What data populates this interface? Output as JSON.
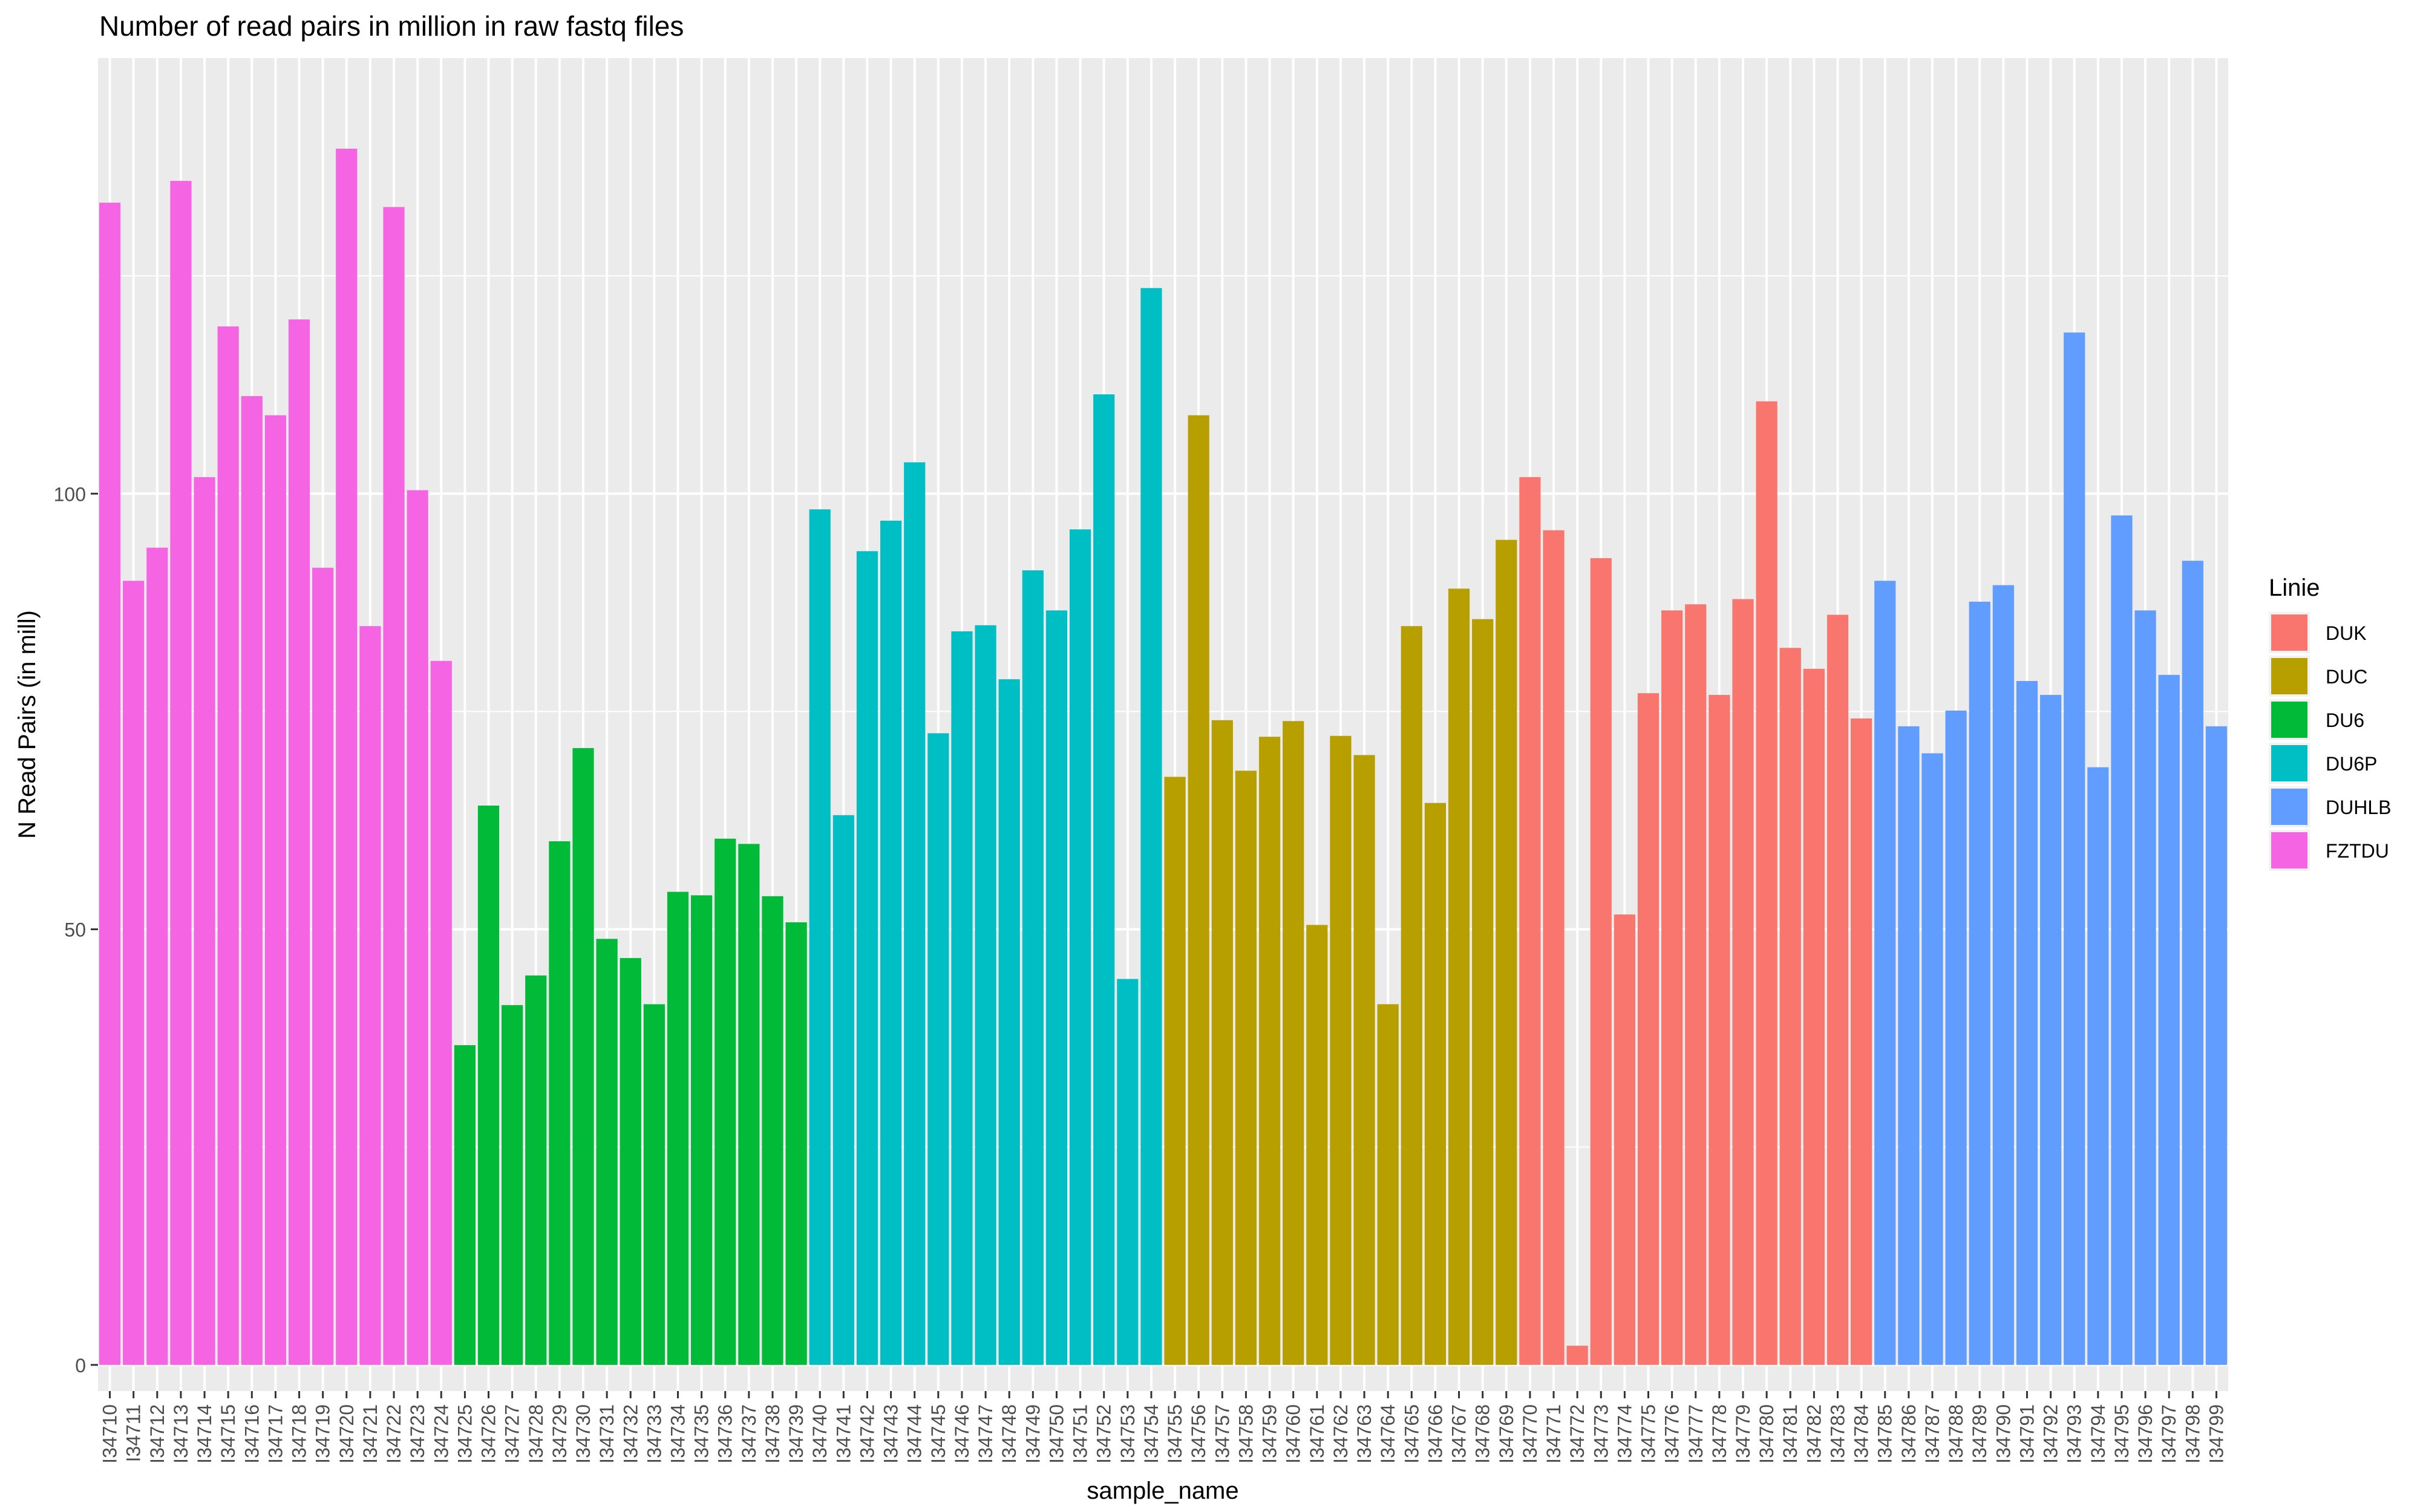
{
  "chart_data": {
    "type": "bar",
    "title": "Number of read pairs in million in raw fastq files",
    "xlabel": "sample_name",
    "ylabel": "N Read Pairs (in mill)",
    "yticks": [
      "0",
      "50",
      "100"
    ],
    "ylim": [
      -3,
      150
    ],
    "grid": true,
    "legend": {
      "title": "Linie",
      "position": "right",
      "entries": [
        {
          "name": "DUK",
          "color": "#F8766D"
        },
        {
          "name": "DUC",
          "color": "#B79F00"
        },
        {
          "name": "DU6",
          "color": "#00BA38"
        },
        {
          "name": "DU6P",
          "color": "#00BFC4"
        },
        {
          "name": "DUHLB",
          "color": "#619CFF"
        },
        {
          "name": "FZTDU",
          "color": "#F564E3"
        }
      ]
    },
    "categories": [
      "I34710",
      "I34711",
      "I34712",
      "I34713",
      "I34714",
      "I34715",
      "I34716",
      "I34717",
      "I34718",
      "I34719",
      "I34720",
      "I34721",
      "I34722",
      "I34723",
      "I34724",
      "I34725",
      "I34726",
      "I34727",
      "I34728",
      "I34729",
      "I34730",
      "I34731",
      "I34732",
      "I34733",
      "I34734",
      "I34735",
      "I34736",
      "I34737",
      "I34738",
      "I34739",
      "I34740",
      "I34741",
      "I34742",
      "I34743",
      "I34744",
      "I34745",
      "I34746",
      "I34747",
      "I34748",
      "I34749",
      "I34750",
      "I34751",
      "I34752",
      "I34753",
      "I34754",
      "I34755",
      "I34756",
      "I34757",
      "I34758",
      "I34759",
      "I34760",
      "I34761",
      "I34762",
      "I34763",
      "I34764",
      "I34765",
      "I34766",
      "I34767",
      "I34768",
      "I34769",
      "I34770",
      "I34771",
      "I34772",
      "I34773",
      "I34774",
      "I34775",
      "I34776",
      "I34777",
      "I34778",
      "I34779",
      "I34780",
      "I34781",
      "I34782",
      "I34783",
      "I34784",
      "I34785",
      "I34786",
      "I34787",
      "I34788",
      "I34789",
      "I34790",
      "I34791",
      "I34792",
      "I34793",
      "I34794",
      "I34795",
      "I34796",
      "I34797",
      "I34798",
      "I34799"
    ],
    "values": [
      133.4,
      90,
      93.8,
      135.9,
      101.9,
      119.2,
      111.2,
      109,
      120,
      91.5,
      139.6,
      84.8,
      132.9,
      100.4,
      80.8,
      36.7,
      64.2,
      41.3,
      44.7,
      60.1,
      70.8,
      48.9,
      46.7,
      41.4,
      54.3,
      53.9,
      60.4,
      59.8,
      53.8,
      50.8,
      98.2,
      63.1,
      93.4,
      96.9,
      103.6,
      72.5,
      84.2,
      84.9,
      78.7,
      91.2,
      86.6,
      95.9,
      111.4,
      44.3,
      123.6,
      67.5,
      109,
      74,
      68.2,
      72.1,
      73.9,
      50.5,
      72.2,
      70,
      41.4,
      84.8,
      64.5,
      89.1,
      85.6,
      94.7,
      101.9,
      95.8,
      2.2,
      92.6,
      51.7,
      77.1,
      86.6,
      87.3,
      76.9,
      87.9,
      110.6,
      82.3,
      79.9,
      86.1,
      74.2,
      90,
      73.3,
      70.2,
      75.1,
      87.6,
      89.5,
      78.5,
      76.9,
      118.5,
      68.6,
      97.5,
      86.6,
      79.2,
      92.3,
      73.3
    ],
    "groups": [
      "FZTDU",
      "FZTDU",
      "FZTDU",
      "FZTDU",
      "FZTDU",
      "FZTDU",
      "FZTDU",
      "FZTDU",
      "FZTDU",
      "FZTDU",
      "FZTDU",
      "FZTDU",
      "FZTDU",
      "FZTDU",
      "FZTDU",
      "DU6",
      "DU6",
      "DU6",
      "DU6",
      "DU6",
      "DU6",
      "DU6",
      "DU6",
      "DU6",
      "DU6",
      "DU6",
      "DU6",
      "DU6",
      "DU6",
      "DU6",
      "DU6P",
      "DU6P",
      "DU6P",
      "DU6P",
      "DU6P",
      "DU6P",
      "DU6P",
      "DU6P",
      "DU6P",
      "DU6P",
      "DU6P",
      "DU6P",
      "DU6P",
      "DU6P",
      "DU6P",
      "DUC",
      "DUC",
      "DUC",
      "DUC",
      "DUC",
      "DUC",
      "DUC",
      "DUC",
      "DUC",
      "DUC",
      "DUC",
      "DUC",
      "DUC",
      "DUC",
      "DUC",
      "DUK",
      "DUK",
      "DUK",
      "DUK",
      "DUK",
      "DUK",
      "DUK",
      "DUK",
      "DUK",
      "DUK",
      "DUK",
      "DUK",
      "DUK",
      "DUK",
      "DUK",
      "DUHLB",
      "DUHLB",
      "DUHLB",
      "DUHLB",
      "DUHLB",
      "DUHLB",
      "DUHLB",
      "DUHLB",
      "DUHLB",
      "DUHLB",
      "DUHLB",
      "DUHLB",
      "DUHLB",
      "DUHLB",
      "DUHLB"
    ],
    "panel_color": "#EBEBEB",
    "grid_color": "#FFFFFF"
  }
}
